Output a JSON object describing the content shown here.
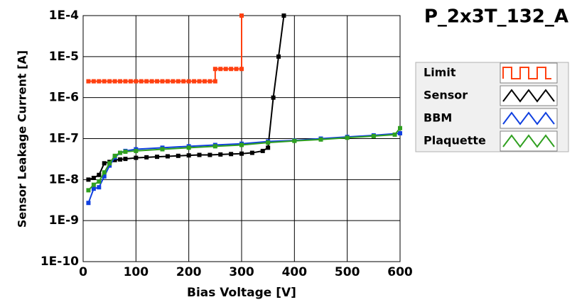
{
  "chart_data": {
    "type": "line",
    "title": "P_2x3T_132_A",
    "x_label": "Bias Voltage [V]",
    "y_label": "Sensor Leakage Current [A]",
    "log_y": true,
    "grid": true,
    "xlim": [
      0,
      600
    ],
    "xticks": [
      0,
      100,
      200,
      300,
      400,
      500,
      600
    ],
    "ylim": [
      1e-10,
      0.0001
    ],
    "yticks": [
      {
        "value": 1e-10,
        "label": "1E-10"
      },
      {
        "value": 1e-09,
        "label": "1E-9"
      },
      {
        "value": 1e-08,
        "label": "1E-8"
      },
      {
        "value": 1e-07,
        "label": "1E-7"
      },
      {
        "value": 1e-06,
        "label": "1E-6"
      },
      {
        "value": 1e-05,
        "label": "1E-5"
      },
      {
        "value": 0.0001,
        "label": "1E-4"
      }
    ],
    "series": [
      {
        "name": "Limit",
        "color": "#ff4010",
        "x": [
          10,
          20,
          30,
          40,
          50,
          60,
          70,
          80,
          90,
          100,
          110,
          120,
          130,
          140,
          150,
          160,
          170,
          180,
          190,
          200,
          210,
          220,
          230,
          240,
          250,
          250,
          260,
          270,
          280,
          290,
          300,
          300
        ],
        "values": [
          2.5e-06,
          2.5e-06,
          2.5e-06,
          2.5e-06,
          2.5e-06,
          2.5e-06,
          2.5e-06,
          2.5e-06,
          2.5e-06,
          2.5e-06,
          2.5e-06,
          2.5e-06,
          2.5e-06,
          2.5e-06,
          2.5e-06,
          2.5e-06,
          2.5e-06,
          2.5e-06,
          2.5e-06,
          2.5e-06,
          2.5e-06,
          2.5e-06,
          2.5e-06,
          2.5e-06,
          2.5e-06,
          5e-06,
          5e-06,
          5e-06,
          5e-06,
          5e-06,
          5e-06,
          0.0001
        ]
      },
      {
        "name": "Sensor",
        "color": "#000000",
        "x": [
          10,
          20,
          30,
          40,
          50,
          60,
          70,
          80,
          100,
          120,
          140,
          160,
          180,
          200,
          220,
          240,
          260,
          280,
          300,
          320,
          340,
          350,
          360,
          370,
          380
        ],
        "values": [
          1e-08,
          1.1e-08,
          1.3e-08,
          2.5e-08,
          2.7e-08,
          3e-08,
          3.1e-08,
          3.2e-08,
          3.4e-08,
          3.5e-08,
          3.6e-08,
          3.7e-08,
          3.8e-08,
          3.9e-08,
          4e-08,
          4e-08,
          4.1e-08,
          4.2e-08,
          4.3e-08,
          4.5e-08,
          5e-08,
          6e-08,
          1e-06,
          1e-05,
          0.0001
        ]
      },
      {
        "name": "BBM",
        "color": "#1040e0",
        "x": [
          10,
          20,
          30,
          40,
          50,
          60,
          70,
          80,
          100,
          150,
          200,
          250,
          300,
          350,
          400,
          450,
          500,
          550,
          600
        ],
        "values": [
          2.7e-09,
          6e-09,
          6.5e-09,
          1.2e-08,
          2.2e-08,
          3.5e-08,
          4.5e-08,
          5e-08,
          5.5e-08,
          6e-08,
          6.5e-08,
          7e-08,
          7.5e-08,
          8.5e-08,
          9e-08,
          1e-07,
          1.1e-07,
          1.2e-07,
          1.35e-07
        ]
      },
      {
        "name": "Plaquette",
        "color": "#30a020",
        "x": [
          10,
          20,
          30,
          40,
          50,
          60,
          70,
          80,
          100,
          150,
          200,
          250,
          300,
          350,
          400,
          450,
          500,
          550,
          590,
          600
        ],
        "values": [
          5.5e-09,
          7.5e-09,
          9e-09,
          1.5e-08,
          2.5e-08,
          3.8e-08,
          4.5e-08,
          4.8e-08,
          5e-08,
          5.5e-08,
          6e-08,
          6.5e-08,
          7e-08,
          8e-08,
          8.8e-08,
          9.5e-08,
          1.05e-07,
          1.15e-07,
          1.25e-07,
          1.8e-07
        ]
      }
    ]
  }
}
